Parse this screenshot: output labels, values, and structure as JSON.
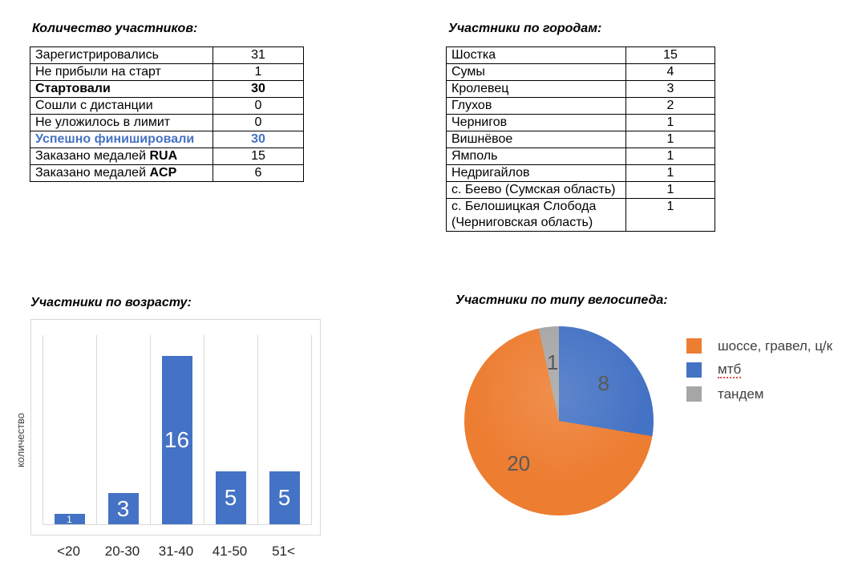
{
  "page": {
    "background": "#ffffff"
  },
  "colors": {
    "accent_blue": "#4472C4",
    "accent_orange": "#ED7D31",
    "accent_gray": "#A6A6A6",
    "table_border": "#000000",
    "grid_gray": "#D9D9D9",
    "pie_label_gray": "#595959",
    "blue_text_row": "#4472C4"
  },
  "participants_table": {
    "title": "Количество участников:",
    "rows": [
      {
        "label_parts": [
          {
            "text": "Зарегистрировались",
            "bold": false
          }
        ],
        "value": "31",
        "row_style": ""
      },
      {
        "label_parts": [
          {
            "text": "Не прибыли на старт",
            "bold": false
          }
        ],
        "value": "1",
        "row_style": ""
      },
      {
        "label_parts": [
          {
            "text": "Стартовали",
            "bold": true
          }
        ],
        "value": "30",
        "row_style": "row-bold"
      },
      {
        "label_parts": [
          {
            "text": "Сошли с дистанции",
            "bold": false
          }
        ],
        "value": "0",
        "row_style": ""
      },
      {
        "label_parts": [
          {
            "text": "Не уложилось в лимит",
            "bold": false
          }
        ],
        "value": "0",
        "row_style": ""
      },
      {
        "label_parts": [
          {
            "text": "Успешно финишировали",
            "bold": true
          }
        ],
        "value": "30",
        "row_style": "row-blue"
      },
      {
        "label_parts": [
          {
            "text": "Заказано медалей ",
            "bold": false
          },
          {
            "text": "RUA",
            "bold": true
          }
        ],
        "value": "15",
        "row_style": ""
      },
      {
        "label_parts": [
          {
            "text": "Заказано медалей ",
            "bold": false
          },
          {
            "text": "ACP",
            "bold": true
          }
        ],
        "value": "6",
        "row_style": ""
      }
    ]
  },
  "cities_table": {
    "title": "Участники по городам:",
    "rows": [
      {
        "label": "Шостка",
        "value": "15"
      },
      {
        "label": "Сумы",
        "value": "4"
      },
      {
        "label": "Кролевец",
        "value": "3"
      },
      {
        "label": "Глухов",
        "value": "2"
      },
      {
        "label": "Чернигов",
        "value": "1"
      },
      {
        "label": "Вишнёвое",
        "value": "1"
      },
      {
        "label": "Ямполь",
        "value": "1"
      },
      {
        "label": "Недригайлов",
        "value": "1"
      },
      {
        "label": "с. Беево (Сумская область)",
        "value": "1"
      },
      {
        "label": "с. Белошицкая Слобода (Черниговская область)",
        "value": "1"
      }
    ]
  },
  "chart_data": [
    {
      "type": "bar",
      "title": "Участники по возрасту:",
      "categories": [
        "<20",
        "20-30",
        "31-40",
        "41-50",
        "51<"
      ],
      "values": [
        1,
        3,
        16,
        5,
        5
      ],
      "xlabel": "",
      "ylabel": "количество",
      "ylim": [
        0,
        18
      ],
      "grid": "vertical lines at category boundaries, light gray",
      "legend_position": "none",
      "bar_color": "#4472C4",
      "data_label_color": "#FFFFFF"
    },
    {
      "type": "pie",
      "title": "Участники по типу велосипеда:",
      "slices": [
        {
          "label": "мтб",
          "value": 8,
          "color": "#4472C4"
        },
        {
          "label": "шоссе, гравел, ц/к",
          "value": 20,
          "color": "#ED7D31"
        },
        {
          "label": "тандем",
          "value": 1,
          "color": "#A6A6A6"
        }
      ],
      "rotation": "first slice starts at 12 o'clock, drawn clockwise",
      "data_label_color": "#595959",
      "legend_position": "right",
      "legend": [
        {
          "label": "шоссе, гравел, ц/к",
          "color": "#ED7D31",
          "spellcheck_underline": false
        },
        {
          "label": "мтб",
          "color": "#4472C4",
          "spellcheck_underline": true
        },
        {
          "label": "тандем",
          "color": "#A6A6A6",
          "spellcheck_underline": false
        }
      ]
    }
  ]
}
